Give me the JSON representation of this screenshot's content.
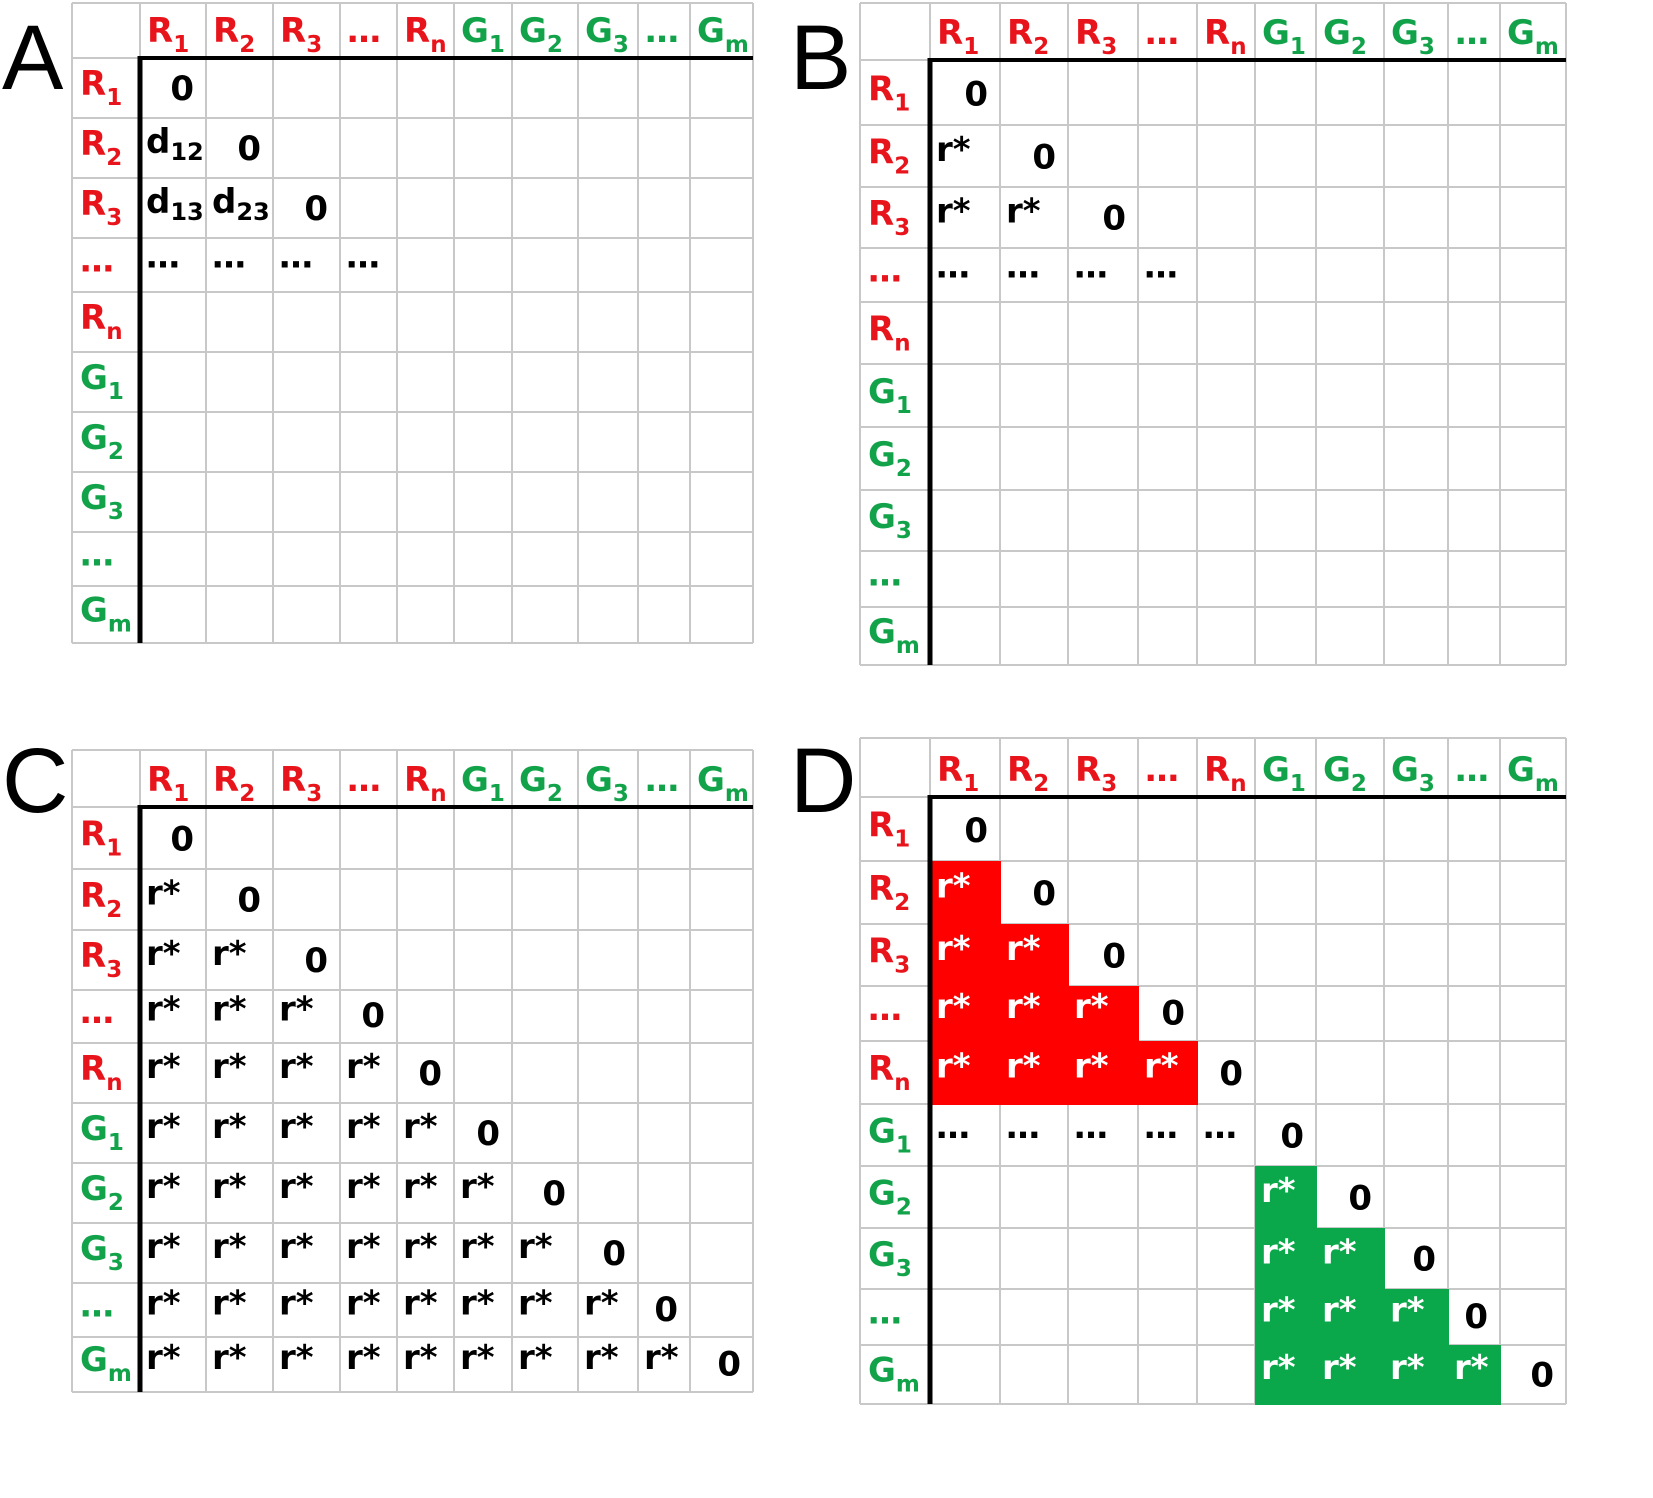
{
  "colors": {
    "red": "#e8141b",
    "green": "#12a34a",
    "fill_red": "#ff0000",
    "fill_green": "#0aa84b",
    "gridline": "#c8c8c8",
    "axis": "#000000",
    "text": "#000000",
    "white": "#ffffff"
  },
  "labels": [
    {
      "base": "R",
      "sub": "1",
      "color": "red"
    },
    {
      "base": "R",
      "sub": "2",
      "color": "red"
    },
    {
      "base": "R",
      "sub": "3",
      "color": "red"
    },
    {
      "base": "...",
      "sub": "",
      "color": "red"
    },
    {
      "base": "R",
      "sub": "n",
      "color": "red"
    },
    {
      "base": "G",
      "sub": "1",
      "color": "green"
    },
    {
      "base": "G",
      "sub": "2",
      "color": "green"
    },
    {
      "base": "G",
      "sub": "3",
      "color": "green"
    },
    {
      "base": "...",
      "sub": "",
      "color": "green"
    },
    {
      "base": "G",
      "sub": "m",
      "color": "green"
    }
  ],
  "panels": [
    {
      "id": "A",
      "label": "A",
      "cells": [
        {
          "r": 0,
          "c": 0,
          "text": "0"
        },
        {
          "r": 1,
          "c": 0,
          "text": "d",
          "sub": "12"
        },
        {
          "r": 1,
          "c": 1,
          "text": "0"
        },
        {
          "r": 2,
          "c": 0,
          "text": "d",
          "sub": "13"
        },
        {
          "r": 2,
          "c": 1,
          "text": "d",
          "sub": "23"
        },
        {
          "r": 2,
          "c": 2,
          "text": "0"
        },
        {
          "r": 3,
          "c": 0,
          "text": "..."
        },
        {
          "r": 3,
          "c": 1,
          "text": "..."
        },
        {
          "r": 3,
          "c": 2,
          "text": "..."
        },
        {
          "r": 3,
          "c": 3,
          "text": "..."
        }
      ]
    },
    {
      "id": "B",
      "label": "B",
      "cells": [
        {
          "r": 0,
          "c": 0,
          "text": "0"
        },
        {
          "r": 1,
          "c": 0,
          "text": "r*"
        },
        {
          "r": 1,
          "c": 1,
          "text": "0"
        },
        {
          "r": 2,
          "c": 0,
          "text": "r*"
        },
        {
          "r": 2,
          "c": 1,
          "text": "r*"
        },
        {
          "r": 2,
          "c": 2,
          "text": "0"
        },
        {
          "r": 3,
          "c": 0,
          "text": "..."
        },
        {
          "r": 3,
          "c": 1,
          "text": "..."
        },
        {
          "r": 3,
          "c": 2,
          "text": "..."
        },
        {
          "r": 3,
          "c": 3,
          "text": "..."
        }
      ]
    },
    {
      "id": "C",
      "label": "C",
      "fill_lower": true,
      "cells": []
    },
    {
      "id": "D",
      "label": "D",
      "cells": [
        {
          "r": 0,
          "c": 0,
          "text": "0"
        },
        {
          "r": 1,
          "c": 0,
          "text": "r*",
          "fill": "red"
        },
        {
          "r": 1,
          "c": 1,
          "text": "0"
        },
        {
          "r": 2,
          "c": 0,
          "text": "r*",
          "fill": "red"
        },
        {
          "r": 2,
          "c": 1,
          "text": "r*",
          "fill": "red"
        },
        {
          "r": 2,
          "c": 2,
          "text": "0"
        },
        {
          "r": 3,
          "c": 0,
          "text": "r*",
          "fill": "red"
        },
        {
          "r": 3,
          "c": 1,
          "text": "r*",
          "fill": "red"
        },
        {
          "r": 3,
          "c": 2,
          "text": "r*",
          "fill": "red"
        },
        {
          "r": 3,
          "c": 3,
          "text": "0"
        },
        {
          "r": 4,
          "c": 0,
          "text": "r*",
          "fill": "red"
        },
        {
          "r": 4,
          "c": 1,
          "text": "r*",
          "fill": "red"
        },
        {
          "r": 4,
          "c": 2,
          "text": "r*",
          "fill": "red"
        },
        {
          "r": 4,
          "c": 3,
          "text": "r*",
          "fill": "red"
        },
        {
          "r": 4,
          "c": 4,
          "text": "0"
        },
        {
          "r": 5,
          "c": 0,
          "text": "..."
        },
        {
          "r": 5,
          "c": 1,
          "text": "..."
        },
        {
          "r": 5,
          "c": 2,
          "text": "..."
        },
        {
          "r": 5,
          "c": 3,
          "text": "..."
        },
        {
          "r": 5,
          "c": 4,
          "text": "..."
        },
        {
          "r": 5,
          "c": 5,
          "text": "0"
        },
        {
          "r": 6,
          "c": 5,
          "text": "r*",
          "fill": "green"
        },
        {
          "r": 6,
          "c": 6,
          "text": "0"
        },
        {
          "r": 7,
          "c": 5,
          "text": "r*",
          "fill": "green"
        },
        {
          "r": 7,
          "c": 6,
          "text": "r*",
          "fill": "green"
        },
        {
          "r": 7,
          "c": 7,
          "text": "0"
        },
        {
          "r": 8,
          "c": 5,
          "text": "r*",
          "fill": "green"
        },
        {
          "r": 8,
          "c": 6,
          "text": "r*",
          "fill": "green"
        },
        {
          "r": 8,
          "c": 7,
          "text": "r*",
          "fill": "green"
        },
        {
          "r": 8,
          "c": 8,
          "text": "0"
        },
        {
          "r": 9,
          "c": 5,
          "text": "r*",
          "fill": "green"
        },
        {
          "r": 9,
          "c": 6,
          "text": "r*",
          "fill": "green"
        },
        {
          "r": 9,
          "c": 7,
          "text": "r*",
          "fill": "green"
        },
        {
          "r": 9,
          "c": 8,
          "text": "r*",
          "fill": "green"
        },
        {
          "r": 9,
          "c": 9,
          "text": "0"
        }
      ]
    }
  ],
  "fill_cell_text": "r*",
  "diag_text": "0"
}
